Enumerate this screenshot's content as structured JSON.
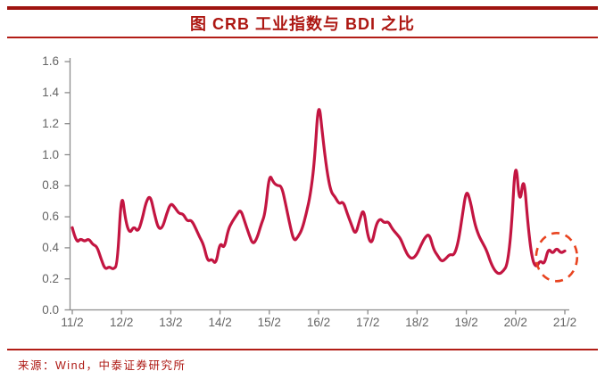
{
  "header": {
    "title": "图 CRB 工业指数与 BDI 之比"
  },
  "footer": {
    "source": "来源：Wind，中泰证券研究所"
  },
  "chart_data": {
    "type": "line",
    "title": "CRB 工业指数与 BDI 之比",
    "x_start": "2011/02",
    "x_end": "2021/02",
    "x_frequency": "monthly",
    "x_tick_labels": [
      "11/2",
      "12/2",
      "13/2",
      "14/2",
      "15/2",
      "16/2",
      "17/2",
      "18/2",
      "19/2",
      "20/2",
      "21/2"
    ],
    "y_tick_labels": [
      "0.0",
      "0.2",
      "0.4",
      "0.6",
      "0.8",
      "1.0",
      "1.2",
      "1.4",
      "1.6"
    ],
    "ylim": [
      0,
      1.6
    ],
    "grid": false,
    "legend": "none",
    "line_color": "#c31541",
    "axis_color": "#8c8c8c",
    "monthly_values": [
      0.53,
      0.43,
      0.46,
      0.44,
      0.46,
      0.42,
      0.41,
      0.33,
      0.26,
      0.28,
      0.26,
      0.29,
      0.78,
      0.57,
      0.49,
      0.54,
      0.5,
      0.58,
      0.7,
      0.74,
      0.62,
      0.52,
      0.53,
      0.62,
      0.69,
      0.66,
      0.62,
      0.62,
      0.57,
      0.58,
      0.53,
      0.47,
      0.42,
      0.31,
      0.33,
      0.29,
      0.44,
      0.39,
      0.52,
      0.57,
      0.61,
      0.65,
      0.57,
      0.49,
      0.42,
      0.46,
      0.55,
      0.62,
      0.88,
      0.82,
      0.8,
      0.8,
      0.68,
      0.55,
      0.44,
      0.47,
      0.52,
      0.62,
      0.74,
      0.95,
      1.37,
      1.12,
      0.9,
      0.76,
      0.73,
      0.68,
      0.7,
      0.62,
      0.55,
      0.48,
      0.58,
      0.66,
      0.47,
      0.42,
      0.55,
      0.59,
      0.56,
      0.57,
      0.52,
      0.49,
      0.46,
      0.39,
      0.34,
      0.33,
      0.36,
      0.42,
      0.47,
      0.49,
      0.39,
      0.35,
      0.31,
      0.33,
      0.36,
      0.35,
      0.43,
      0.6,
      0.78,
      0.7,
      0.56,
      0.48,
      0.43,
      0.38,
      0.3,
      0.25,
      0.23,
      0.25,
      0.29,
      0.52,
      1.0,
      0.66,
      0.88,
      0.55,
      0.33,
      0.27,
      0.32,
      0.29,
      0.4,
      0.36,
      0.4,
      0.365,
      0.38
    ],
    "annotation": {
      "type": "dashed-circle",
      "color": "#e8431f",
      "center_month": "2020/12",
      "center_value": 0.34
    }
  }
}
